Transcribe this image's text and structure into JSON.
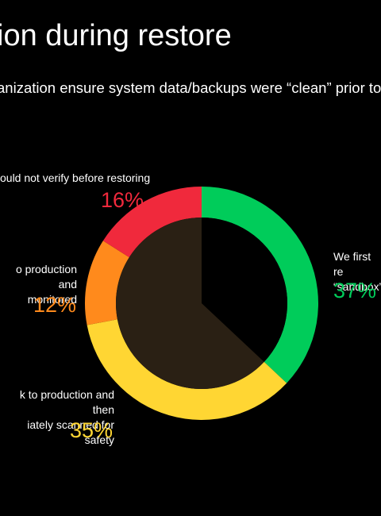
{
  "title": "ion during restore",
  "question": "anization ensure system data/backups were “clean” prior to re",
  "chart_data": {
    "type": "pie",
    "slices": [
      {
        "label": "We first re\n“sandbox”",
        "value": 37,
        "value_text": "37%",
        "color": "#00cc5a"
      },
      {
        "label": "k to production and then\niately scanned for safety",
        "value": 35,
        "value_text": "35%",
        "color": "#ffd633"
      },
      {
        "label": "o production and\nmonitored",
        "value": 12,
        "value_text": "12%",
        "color": "#ff8a1c"
      },
      {
        "label": "ould not verify before restoring",
        "value": 16,
        "value_text": "16%",
        "color": "#f0293c"
      }
    ]
  }
}
